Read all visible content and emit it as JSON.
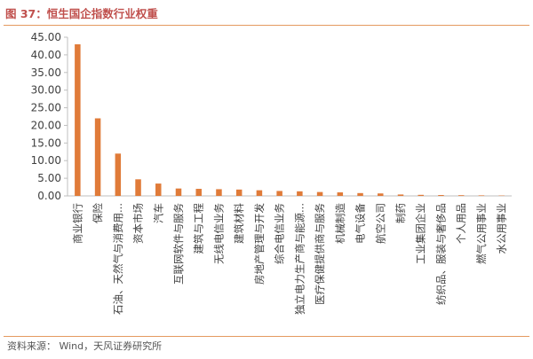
{
  "figure": {
    "title": "图 37：恒生国企指数行业权重",
    "source": "资料来源： Wind，天风证券研究所"
  },
  "colors": {
    "bar": "#e07b39",
    "axis": "#bfbfbf",
    "title": "#c0504d",
    "rule": "#e49a60"
  },
  "chart_data": {
    "type": "bar",
    "title": "",
    "xlabel": "",
    "ylabel": "",
    "ylim": [
      0,
      45
    ],
    "yticks": [
      "0.00",
      "5.00",
      "10.00",
      "15.00",
      "20.00",
      "25.00",
      "30.00",
      "35.00",
      "40.00",
      "45.00"
    ],
    "grid": false,
    "legend": "none",
    "categories": [
      "商业银行",
      "保险",
      "石油、天然气与消费用...",
      "资本市场",
      "汽车",
      "互联网软件与服务",
      "建筑与工程",
      "无线电信业务",
      "建筑材料",
      "房地产管理与开发",
      "综合电信业务",
      "独立电力生产商与能源...",
      "医疗保健提供商与服务",
      "机械制造",
      "电气设备",
      "航空公司",
      "制药",
      "工业集团企业",
      "纺织品、服装与奢侈品",
      "个人用品",
      "燃气公用事业",
      "水公用事业"
    ],
    "values": [
      43.0,
      22.0,
      12.0,
      4.7,
      3.5,
      2.1,
      2.0,
      1.9,
      1.8,
      1.6,
      1.4,
      1.3,
      1.1,
      1.0,
      0.8,
      0.7,
      0.4,
      0.3,
      0.25,
      0.2,
      0.15,
      0.1
    ]
  }
}
